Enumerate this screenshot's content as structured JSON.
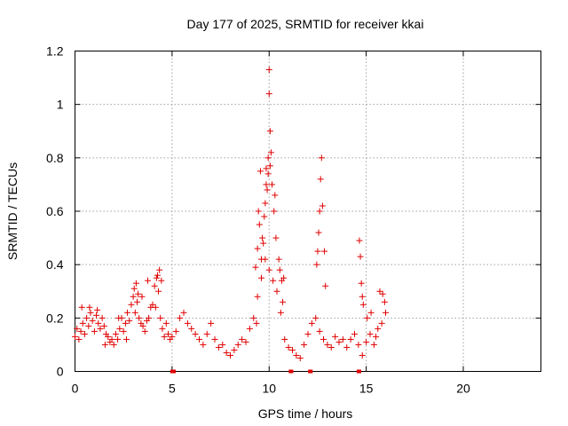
{
  "chart_data": {
    "type": "scatter",
    "title": "Day 177 of 2025, SRMTID for receiver kkai",
    "xlabel": "GPS time / hours",
    "ylabel": "SRMTID / TECUs",
    "xlim": [
      0,
      24
    ],
    "ylim": [
      0,
      1.2
    ],
    "x_ticks": [
      0,
      5,
      10,
      15,
      20
    ],
    "x_tick_labels": [
      "0",
      "5",
      "10",
      "15",
      "20"
    ],
    "y_ticks": [
      0,
      0.2,
      0.4,
      0.6,
      0.8,
      1.0,
      1.2
    ],
    "y_tick_labels": [
      "0",
      "0.2",
      "0.4",
      "0.6",
      "0.8",
      "1",
      "1.2"
    ],
    "grid": true,
    "marker": "plus",
    "color": "#e00000",
    "series": [
      {
        "name": "SRMTID",
        "x": [
          0.0,
          0.1,
          0.2,
          0.3,
          0.4,
          0.5,
          0.6,
          0.7,
          0.8,
          0.9,
          1.0,
          1.1,
          1.2,
          1.3,
          1.4,
          1.5,
          1.6,
          1.7,
          1.8,
          1.9,
          2.0,
          2.1,
          2.2,
          2.3,
          2.4,
          2.5,
          2.6,
          2.7,
          2.8,
          2.9,
          3.0,
          3.1,
          3.2,
          3.3,
          3.4,
          3.5,
          3.6,
          3.7,
          3.8,
          3.9,
          4.0,
          4.1,
          4.2,
          4.3,
          4.4,
          4.5,
          4.6,
          4.7,
          4.8,
          4.9,
          5.0,
          5.2,
          5.4,
          5.6,
          5.8,
          6.0,
          6.2,
          6.4,
          6.6,
          6.8,
          7.0,
          7.2,
          7.4,
          7.6,
          7.8,
          8.0,
          8.2,
          8.4,
          8.6,
          8.8,
          9.0,
          9.2,
          9.4,
          9.6,
          9.8,
          10.0,
          10.2,
          10.4,
          10.6,
          10.8,
          11.0,
          11.2,
          11.4,
          11.6,
          11.8,
          12.0,
          12.2,
          12.4,
          12.6,
          12.8,
          13.0,
          13.2,
          13.4,
          13.6,
          13.8,
          14.0,
          14.2,
          14.4,
          14.6,
          14.8,
          15.0,
          15.2,
          15.4,
          15.6,
          15.8,
          16.0,
          0.35,
          0.75,
          1.15,
          1.55,
          2.25,
          2.65,
          3.05,
          3.15,
          3.25,
          3.45,
          3.75,
          4.15,
          4.25,
          4.35,
          4.45,
          9.3,
          9.35,
          9.4,
          9.45,
          9.5,
          9.55,
          9.6,
          9.65,
          9.7,
          9.75,
          9.8,
          9.85,
          9.9,
          9.95,
          10.05,
          10.1,
          10.15,
          10.25,
          10.3,
          10.35,
          10.5,
          10.55,
          10.65,
          10.7,
          10.75,
          12.45,
          12.5,
          12.55,
          12.6,
          12.65,
          12.7,
          12.75,
          12.85,
          12.9,
          14.65,
          14.7,
          14.75,
          14.8,
          14.85,
          15.05,
          15.25,
          15.5,
          15.7,
          15.85,
          15.95,
          10.0,
          10.0,
          10.05,
          9.85,
          9.95
        ],
        "y": [
          0.13,
          0.16,
          0.12,
          0.15,
          0.18,
          0.14,
          0.2,
          0.17,
          0.22,
          0.19,
          0.15,
          0.21,
          0.18,
          0.16,
          0.2,
          0.17,
          0.14,
          0.13,
          0.11,
          0.12,
          0.1,
          0.14,
          0.12,
          0.16,
          0.2,
          0.15,
          0.18,
          0.22,
          0.19,
          0.25,
          0.28,
          0.22,
          0.26,
          0.2,
          0.18,
          0.17,
          0.15,
          0.19,
          0.2,
          0.24,
          0.25,
          0.32,
          0.35,
          0.3,
          0.2,
          0.16,
          0.13,
          0.18,
          0.14,
          0.12,
          0.13,
          0.15,
          0.2,
          0.22,
          0.18,
          0.16,
          0.14,
          0.12,
          0.1,
          0.14,
          0.18,
          0.12,
          0.09,
          0.1,
          0.07,
          0.06,
          0.08,
          0.1,
          0.12,
          0.11,
          0.16,
          0.2,
          0.28,
          0.35,
          0.42,
          0.38,
          0.34,
          0.3,
          0.22,
          0.12,
          0.09,
          0.08,
          0.06,
          0.05,
          0.1,
          0.14,
          0.18,
          0.2,
          0.15,
          0.12,
          0.1,
          0.09,
          0.13,
          0.11,
          0.12,
          0.09,
          0.12,
          0.14,
          0.1,
          0.06,
          0.11,
          0.14,
          0.1,
          0.16,
          0.18,
          0.22,
          0.24,
          0.24,
          0.23,
          0.1,
          0.2,
          0.12,
          0.31,
          0.33,
          0.29,
          0.28,
          0.34,
          0.24,
          0.36,
          0.38,
          0.34,
          0.39,
          0.18,
          0.46,
          0.6,
          0.55,
          0.75,
          0.42,
          0.5,
          0.48,
          0.58,
          0.63,
          0.7,
          0.68,
          0.8,
          0.9,
          0.82,
          0.7,
          0.6,
          0.66,
          0.5,
          0.42,
          0.38,
          0.34,
          0.26,
          0.35,
          0.4,
          0.45,
          0.52,
          0.6,
          0.72,
          0.8,
          0.62,
          0.45,
          0.32,
          0.49,
          0.43,
          0.33,
          0.28,
          0.25,
          0.2,
          0.22,
          0.13,
          0.3,
          0.29,
          0.26,
          1.13,
          1.04,
          0.77,
          0.76,
          0.74
        ]
      }
    ],
    "gap_markers_x": [
      5.0,
      5.1,
      11.1,
      11.15,
      12.1,
      12.15,
      14.6,
      14.65
    ]
  }
}
